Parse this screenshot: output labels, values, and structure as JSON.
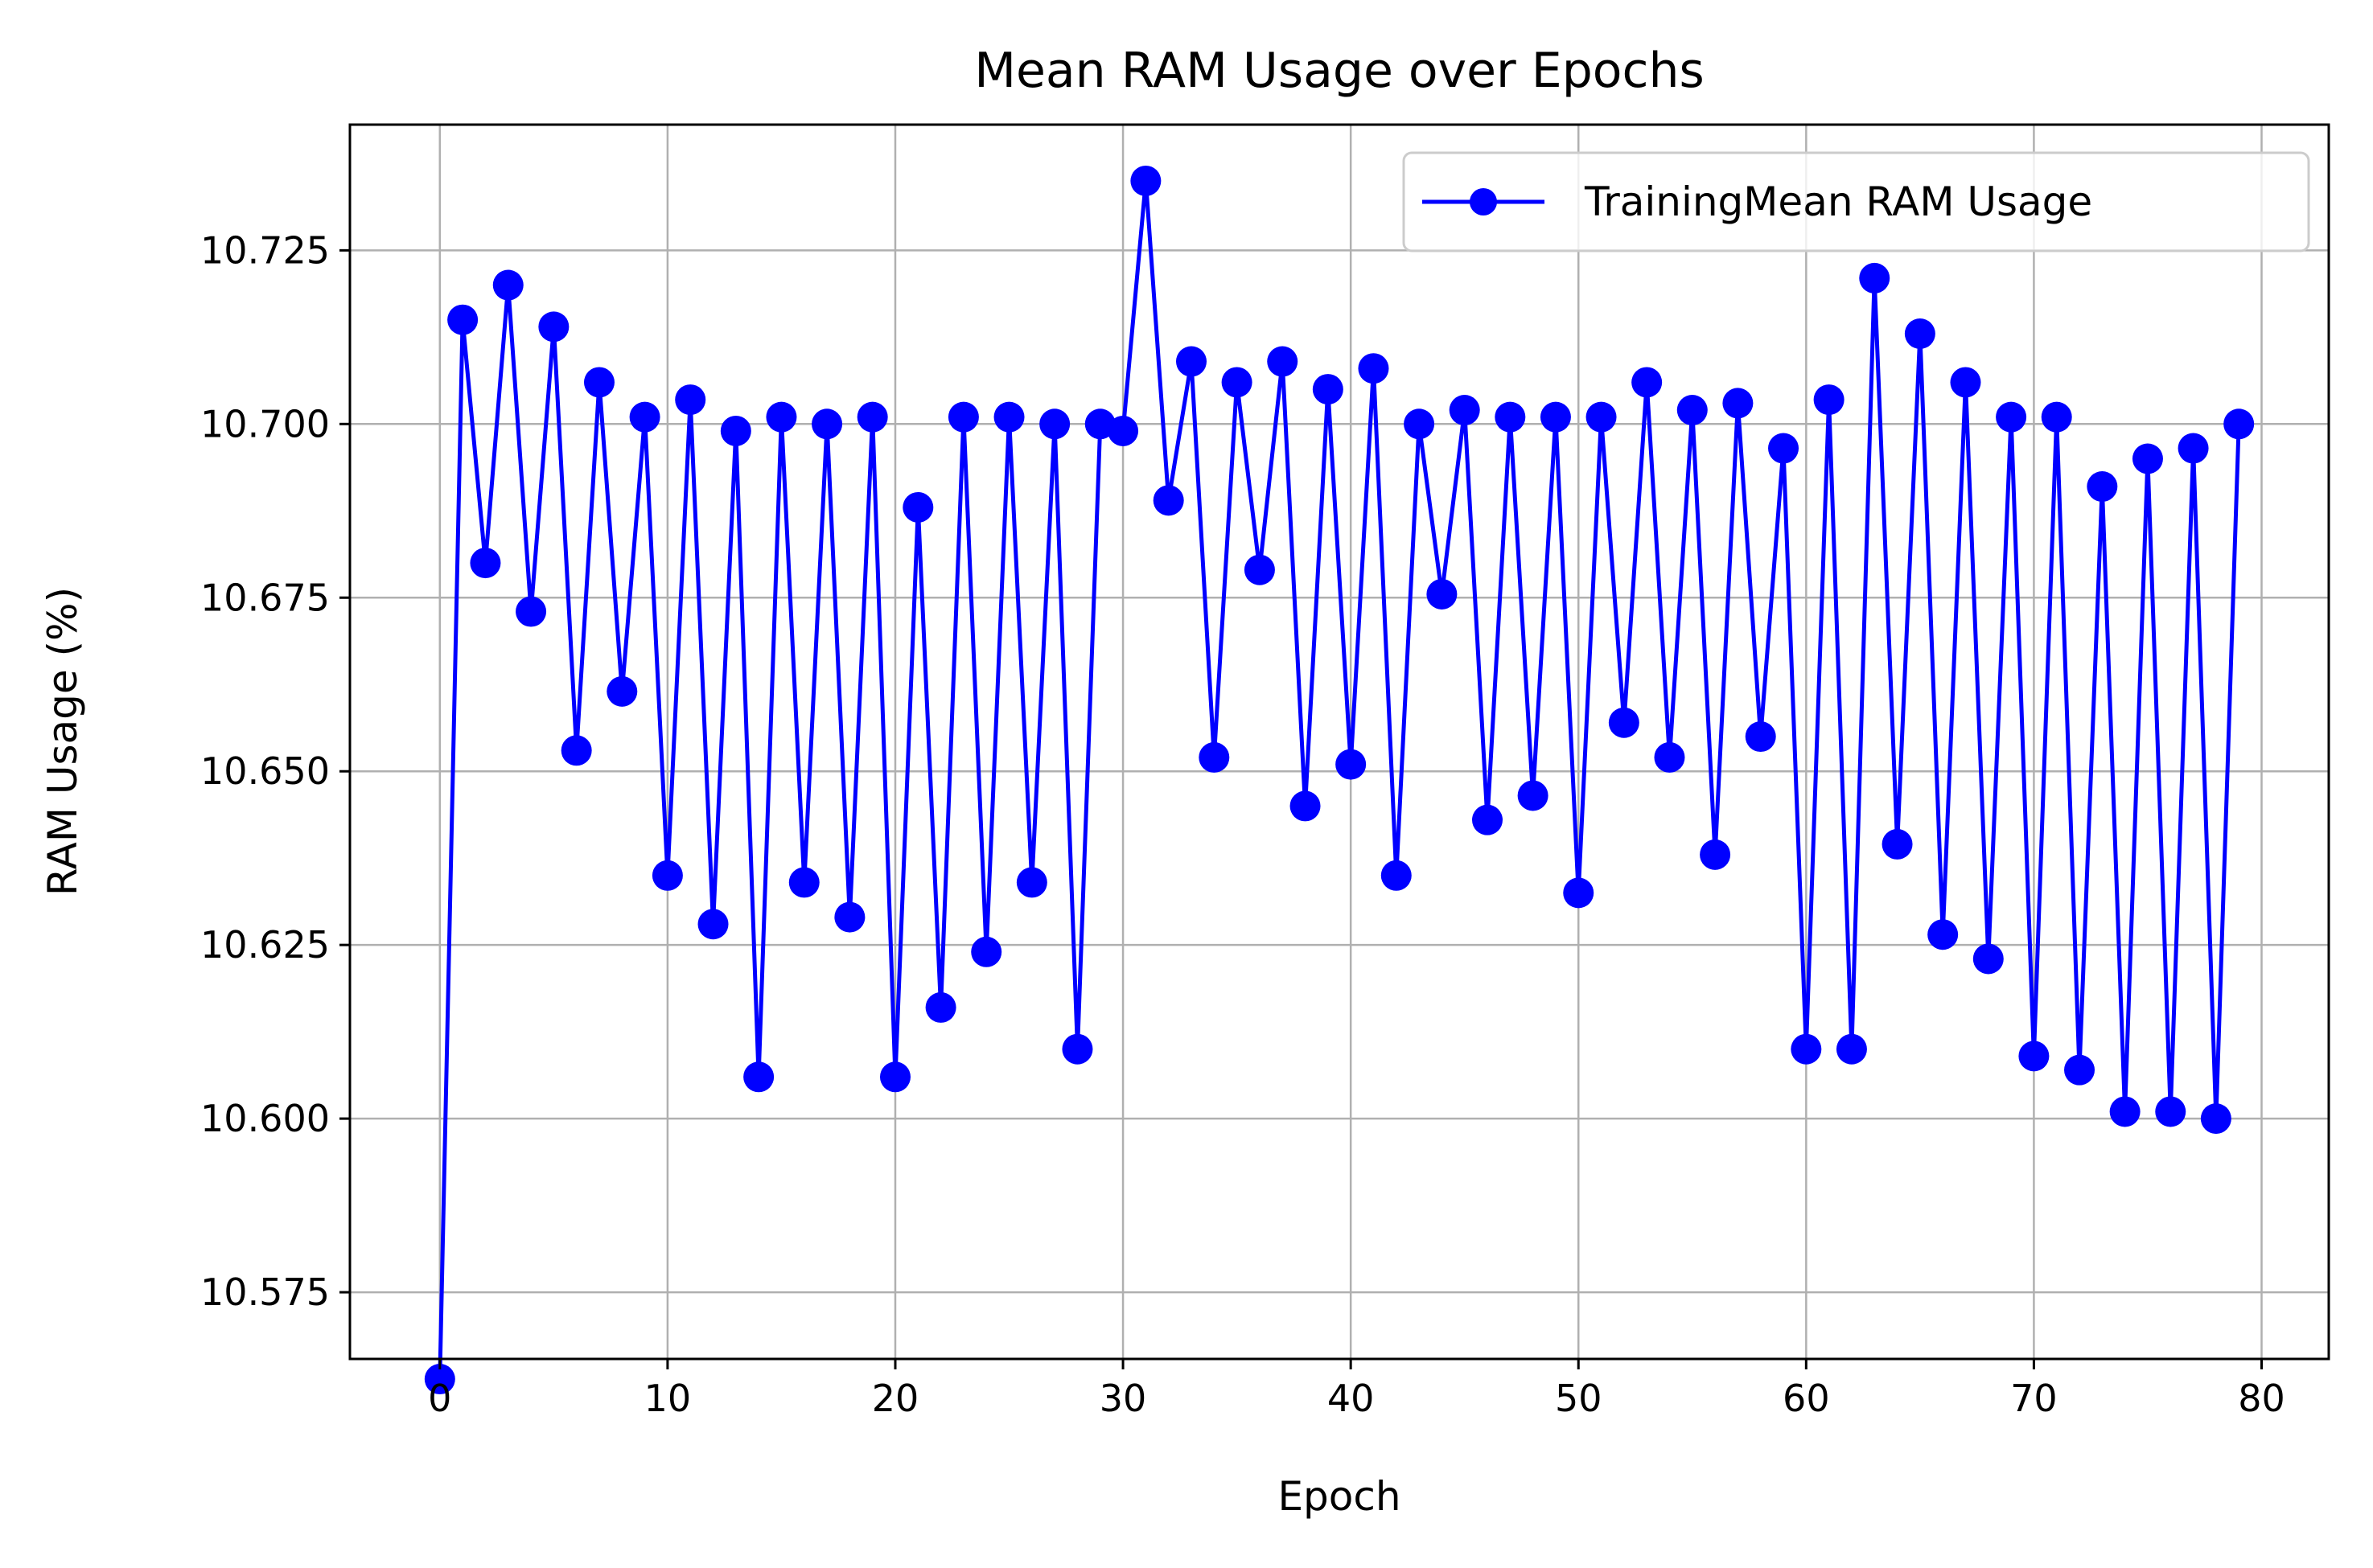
{
  "chart_data": {
    "type": "line",
    "title": "Mean RAM Usage over Epochs",
    "xlabel": "Epoch",
    "ylabel": "RAM Usage (%)",
    "xlim": [
      -3.95,
      82.95
    ],
    "ylim": [
      10.5654,
      10.7431
    ],
    "xticks": [
      0,
      10,
      20,
      30,
      40,
      50,
      60,
      70,
      80
    ],
    "xtick_labels": [
      "0",
      "10",
      "20",
      "30",
      "40",
      "50",
      "60",
      "70",
      "80"
    ],
    "yticks": [
      10.575,
      10.6,
      10.625,
      10.65,
      10.675,
      10.7,
      10.725
    ],
    "ytick_labels": [
      "10.575",
      "10.600",
      "10.625",
      "10.650",
      "10.675",
      "10.700",
      "10.725"
    ],
    "grid": true,
    "legend_position": "top-right",
    "series": [
      {
        "name": "TrainingMean RAM Usage",
        "color": "#0000ff",
        "marker": "circle",
        "x": [
          0,
          1,
          2,
          3,
          4,
          5,
          6,
          7,
          8,
          9,
          10,
          11,
          12,
          13,
          14,
          15,
          16,
          17,
          18,
          19,
          20,
          21,
          22,
          23,
          24,
          25,
          26,
          27,
          28,
          29,
          30,
          31,
          32,
          33,
          34,
          35,
          36,
          37,
          38,
          39,
          40,
          41,
          42,
          43,
          44,
          45,
          46,
          47,
          48,
          49,
          50,
          51,
          52,
          53,
          54,
          55,
          56,
          57,
          58,
          59,
          60,
          61,
          62,
          63,
          64,
          65,
          66,
          67,
          68,
          69,
          70,
          71,
          72,
          73,
          74,
          75,
          76,
          77,
          78,
          79
        ],
        "values": [
          10.5625,
          10.715,
          10.68,
          10.72,
          10.673,
          10.714,
          10.653,
          10.706,
          10.6615,
          10.701,
          10.635,
          10.7035,
          10.628,
          10.699,
          10.606,
          10.701,
          10.634,
          10.7,
          10.629,
          10.701,
          10.606,
          10.688,
          10.616,
          10.701,
          10.624,
          10.701,
          10.634,
          10.7,
          10.61,
          10.7,
          10.699,
          10.735,
          10.689,
          10.709,
          10.652,
          10.706,
          10.679,
          10.709,
          10.645,
          10.705,
          10.651,
          10.708,
          10.635,
          10.7,
          10.6755,
          10.702,
          10.643,
          10.701,
          10.6465,
          10.701,
          10.6325,
          10.701,
          10.657,
          10.706,
          10.652,
          10.702,
          10.638,
          10.703,
          10.655,
          10.6965,
          10.61,
          10.7035,
          10.61,
          10.721,
          10.6395,
          10.713,
          10.6265,
          10.706,
          10.623,
          10.701,
          10.609,
          10.701,
          10.607,
          10.691,
          10.601,
          10.695,
          10.601,
          10.6965,
          10.6,
          10.7
        ]
      }
    ]
  }
}
